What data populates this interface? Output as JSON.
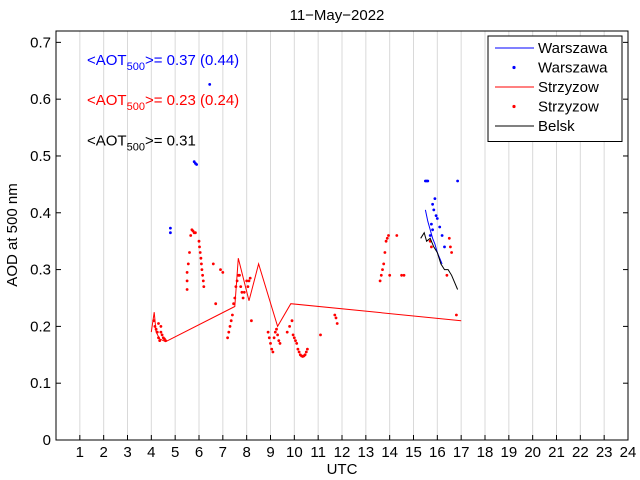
{
  "chart_data": {
    "type": "line",
    "title": "11−May−2022",
    "xlabel": "UTC",
    "ylabel": "AOD at 500 nm",
    "xlim": [
      0,
      24
    ],
    "ylim": [
      0,
      0.72
    ],
    "grid": "vertical",
    "x_ticks": [
      "1",
      "2",
      "3",
      "4",
      "5",
      "6",
      "7",
      "8",
      "9",
      "10",
      "11",
      "12",
      "13",
      "14",
      "15",
      "16",
      "17",
      "18",
      "19",
      "20",
      "21",
      "22",
      "23",
      "24"
    ],
    "y_ticks": [
      "0",
      "0.1",
      "0.2",
      "0.3",
      "0.4",
      "0.5",
      "0.6",
      "0.7"
    ],
    "legend_position": "top-right",
    "annotations": [
      {
        "prefix": "<AOT",
        "sub": "500",
        "suffix": ">= 0.37 (0.44)",
        "color": "#0000ff",
        "x": 1.3,
        "y": 0.66
      },
      {
        "prefix": "<AOT",
        "sub": "500",
        "suffix": ">= 0.23 (0.24)",
        "color": "#ff0000",
        "x": 1.3,
        "y": 0.59
      },
      {
        "prefix": "<AOT",
        "sub": "500",
        "suffix": ">= 0.31",
        "color": "#000000",
        "x": 1.3,
        "y": 0.518
      }
    ],
    "series": [
      {
        "name": "Warszawa",
        "kind": "line",
        "color": "#0000ff",
        "x": [
          15.5,
          15.6,
          15.7,
          15.8,
          15.9,
          16.0,
          16.1,
          16.2
        ],
        "y": [
          0.405,
          0.385,
          0.37,
          0.355,
          0.345,
          0.33,
          0.32,
          0.31
        ]
      },
      {
        "name": "Warszawa",
        "kind": "points",
        "color": "#0000ff",
        "points": [
          [
            4.8,
            0.373
          ],
          [
            4.8,
            0.365
          ],
          [
            5.8,
            0.49
          ],
          [
            5.85,
            0.487
          ],
          [
            5.9,
            0.485
          ],
          [
            6.45,
            0.626
          ],
          [
            15.5,
            0.456
          ],
          [
            15.55,
            0.456
          ],
          [
            15.6,
            0.456
          ],
          [
            15.8,
            0.415
          ],
          [
            15.85,
            0.405
          ],
          [
            15.9,
            0.425
          ],
          [
            15.95,
            0.395
          ],
          [
            16.0,
            0.39
          ],
          [
            15.75,
            0.38
          ],
          [
            15.8,
            0.37
          ],
          [
            15.7,
            0.36
          ],
          [
            16.1,
            0.375
          ],
          [
            16.2,
            0.36
          ],
          [
            16.3,
            0.34
          ],
          [
            16.85,
            0.456
          ]
        ]
      },
      {
        "name": "Strzyzow",
        "kind": "line",
        "color": "#ff0000",
        "x": [
          4.0,
          4.12,
          4.2,
          4.35,
          4.6,
          7.5,
          7.65,
          8.1,
          8.5,
          9.3,
          9.85,
          17.0
        ],
        "y": [
          0.19,
          0.225,
          0.19,
          0.178,
          0.173,
          0.235,
          0.32,
          0.245,
          0.31,
          0.2,
          0.24,
          0.21
        ]
      },
      {
        "name": "Strzyzow",
        "kind": "points",
        "color": "#ff0000",
        "points": [
          [
            4.1,
            0.21
          ],
          [
            4.15,
            0.2
          ],
          [
            4.2,
            0.195
          ],
          [
            4.25,
            0.19
          ],
          [
            4.3,
            0.18
          ],
          [
            4.35,
            0.175
          ],
          [
            4.4,
            0.19
          ],
          [
            4.45,
            0.185
          ],
          [
            4.5,
            0.18
          ],
          [
            4.55,
            0.178
          ],
          [
            4.6,
            0.175
          ],
          [
            4.3,
            0.205
          ],
          [
            4.4,
            0.2
          ],
          [
            5.5,
            0.265
          ],
          [
            5.5,
            0.28
          ],
          [
            5.5,
            0.295
          ],
          [
            5.55,
            0.31
          ],
          [
            5.6,
            0.33
          ],
          [
            5.65,
            0.36
          ],
          [
            5.7,
            0.37
          ],
          [
            5.75,
            0.368
          ],
          [
            5.8,
            0.365
          ],
          [
            5.85,
            0.365
          ],
          [
            6.0,
            0.35
          ],
          [
            6.02,
            0.34
          ],
          [
            6.05,
            0.33
          ],
          [
            6.08,
            0.32
          ],
          [
            6.1,
            0.31
          ],
          [
            6.12,
            0.3
          ],
          [
            6.15,
            0.29
          ],
          [
            6.18,
            0.28
          ],
          [
            6.2,
            0.27
          ],
          [
            6.6,
            0.31
          ],
          [
            6.7,
            0.24
          ],
          [
            6.9,
            0.3
          ],
          [
            7.0,
            0.295
          ],
          [
            7.2,
            0.18
          ],
          [
            7.25,
            0.19
          ],
          [
            7.3,
            0.2
          ],
          [
            7.35,
            0.21
          ],
          [
            7.4,
            0.22
          ],
          [
            7.45,
            0.24
          ],
          [
            7.5,
            0.25
          ],
          [
            7.55,
            0.27
          ],
          [
            7.6,
            0.28
          ],
          [
            7.65,
            0.29
          ],
          [
            7.7,
            0.29
          ],
          [
            7.75,
            0.27
          ],
          [
            7.8,
            0.26
          ],
          [
            7.85,
            0.25
          ],
          [
            7.9,
            0.26
          ],
          [
            8.0,
            0.28
          ],
          [
            8.05,
            0.27
          ],
          [
            8.1,
            0.28
          ],
          [
            8.15,
            0.285
          ],
          [
            8.2,
            0.21
          ],
          [
            8.9,
            0.19
          ],
          [
            8.95,
            0.18
          ],
          [
            9.0,
            0.17
          ],
          [
            9.05,
            0.16
          ],
          [
            9.1,
            0.155
          ],
          [
            9.15,
            0.18
          ],
          [
            9.2,
            0.19
          ],
          [
            9.25,
            0.195
          ],
          [
            9.3,
            0.185
          ],
          [
            9.35,
            0.175
          ],
          [
            9.4,
            0.17
          ],
          [
            9.7,
            0.19
          ],
          [
            9.8,
            0.2
          ],
          [
            9.9,
            0.21
          ],
          [
            9.95,
            0.185
          ],
          [
            10.0,
            0.18
          ],
          [
            10.05,
            0.175
          ],
          [
            10.1,
            0.17
          ],
          [
            10.15,
            0.16
          ],
          [
            10.2,
            0.155
          ],
          [
            10.25,
            0.15
          ],
          [
            10.3,
            0.148
          ],
          [
            10.35,
            0.147
          ],
          [
            10.4,
            0.148
          ],
          [
            10.45,
            0.15
          ],
          [
            10.5,
            0.155
          ],
          [
            10.55,
            0.16
          ],
          [
            11.1,
            0.185
          ],
          [
            11.7,
            0.22
          ],
          [
            11.75,
            0.215
          ],
          [
            11.8,
            0.205
          ],
          [
            13.6,
            0.28
          ],
          [
            13.65,
            0.29
          ],
          [
            13.7,
            0.3
          ],
          [
            13.75,
            0.31
          ],
          [
            13.8,
            0.33
          ],
          [
            13.85,
            0.35
          ],
          [
            13.9,
            0.355
          ],
          [
            13.95,
            0.36
          ],
          [
            14.0,
            0.29
          ],
          [
            14.3,
            0.36
          ],
          [
            14.5,
            0.29
          ],
          [
            14.6,
            0.29
          ],
          [
            15.7,
            0.35
          ],
          [
            15.75,
            0.34
          ],
          [
            16.4,
            0.29
          ],
          [
            16.5,
            0.355
          ],
          [
            16.55,
            0.34
          ],
          [
            16.6,
            0.33
          ],
          [
            16.8,
            0.22
          ]
        ]
      },
      {
        "name": "Belsk",
        "kind": "line",
        "color": "#000000",
        "x": [
          15.3,
          15.45,
          15.55,
          15.7,
          15.85,
          16.0,
          16.15,
          16.3,
          16.45,
          16.6,
          16.75,
          16.85
        ],
        "y": [
          0.355,
          0.365,
          0.35,
          0.355,
          0.34,
          0.33,
          0.31,
          0.3,
          0.3,
          0.29,
          0.275,
          0.265
        ]
      }
    ]
  }
}
